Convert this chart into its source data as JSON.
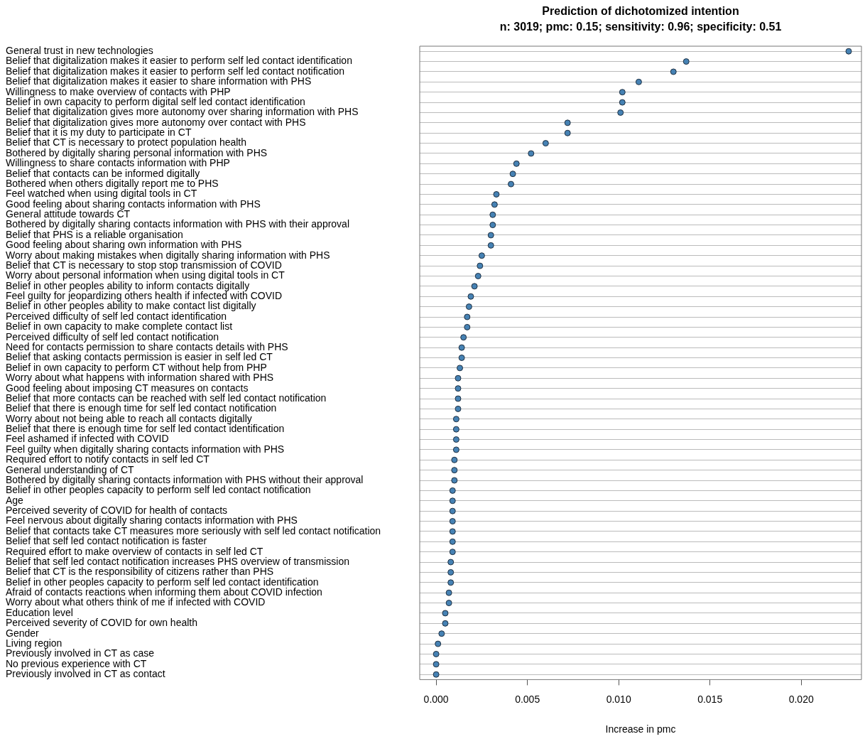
{
  "chart_data": {
    "type": "scatter",
    "orientation": "horizontal",
    "title": "Prediction of dichotomized intention",
    "subtitle": "n: 3019; pmc: 0.15; sensitivity: 0.96; specificity: 0.51",
    "xlabel": "Increase in pmc",
    "categories": [
      "General trust in new technologies",
      "Belief that digitalization makes it easier to perform self led contact identification",
      "Belief that digitalization makes it easier to perform self led contact notification",
      "Belief that digitalization makes it easier to share information with PHS",
      "Willingness to make overview of contacts with PHP",
      "Belief in own capacity to perform digital self led contact identification",
      "Belief that digitalization gives more autonomy over sharing information with PHS",
      "Belief that digitalization gives more autonomy over contact with PHS",
      "Belief that it is my duty to participate in CT",
      "Belief that CT is necessary to protect population health",
      "Bothered by digitally sharing personal information with PHS",
      "Willingness to share contacts information with PHP",
      "Belief that contacts can be informed digitally",
      "Bothered when others digitally report me to PHS",
      "Feel watched when using digital tools in CT",
      "Good feeling about sharing contacts information with PHS",
      "General attitude towards CT",
      "Bothered by digitally sharing contacts information with PHS with their approval",
      "Belief that PHS is a reliable organisation",
      "Good feeling about sharing own information with PHS",
      "Worry about making mistakes when digitally sharing information with PHS",
      "Belief that CT is necessary to stop stop transmission of COVID",
      "Worry about personal information when using digital tools in CT",
      "Belief in other peoples ability to inform contacts digitally",
      "Feel guilty for jeopardizing others health if infected with COVID",
      "Belief in other peoples ability to make contact list digitally",
      "Perceived difficulty of self led contact identification",
      "Belief in own capacity to make complete contact list",
      "Perceived difficulty of self led contact notification",
      "Need for contacts permission to share contacts details with PHS",
      "Belief that asking contacts permission is easier in self led CT",
      "Belief in own capacity to perform CT without help from PHP",
      "Worry about what happens with information shared with PHS",
      "Good feeling about imposing CT measures on contacts",
      "Belief that more contacts can be reached with self led contact notification",
      "Belief that there is enough time for self led contact notification",
      "Worry about not being able to reach all contacts digitally",
      "Belief that there is enough time for self led contact identification",
      "Feel ashamed if infected with COVID",
      "Feel guilty when digitally sharing contacts information with PHS",
      "Required effort to notify contacts in self led CT",
      "General understanding of CT",
      "Bothered by digitally sharing contacts information with PHS without their approval",
      "Belief in other peoples capacity to perform self led contact notification",
      "Age",
      "Perceived severity of COVID for health of contacts",
      "Feel nervous about digitally sharing contacts information with PHS",
      "Belief that contacts take CT measures more seriously with self led contact notification",
      "Belief that self led contact notification is faster",
      "Required effort to make overview of contacts in self led CT",
      "Belief that self led contact notification increases PHS overview of transmission",
      "Belief that CT is the responsibility of citizens rather than PHS",
      "Belief in other peoples capacity to perform self led contact identification",
      "Afraid of contacts reactions when informing them about COVID infection",
      "Worry about what others think of me if infected with COVID",
      "Education level",
      "Perceived severity of COVID for own health",
      "Gender",
      "Living region",
      "Previously involved in CT as case",
      "No previous experience with CT",
      "Previously involved in CT as contact"
    ],
    "values": [
      0.0226,
      0.0137,
      0.013,
      0.0111,
      0.0102,
      0.0102,
      0.0101,
      0.0072,
      0.0072,
      0.006,
      0.0052,
      0.0044,
      0.0042,
      0.0041,
      0.0033,
      0.0032,
      0.0031,
      0.0031,
      0.003,
      0.003,
      0.0025,
      0.0024,
      0.0023,
      0.0021,
      0.0019,
      0.0018,
      0.0017,
      0.0017,
      0.0015,
      0.0014,
      0.0014,
      0.0013,
      0.0012,
      0.0012,
      0.0012,
      0.0012,
      0.0011,
      0.0011,
      0.0011,
      0.0011,
      0.001,
      0.001,
      0.001,
      0.0009,
      0.0009,
      0.0009,
      0.0009,
      0.0009,
      0.0009,
      0.0009,
      0.0008,
      0.0008,
      0.0008,
      0.0007,
      0.0007,
      0.0005,
      0.0005,
      0.0003,
      0.0001,
      0.0,
      0.0,
      0.0
    ],
    "color": "#4682b4",
    "marker": "circle",
    "grid": "y",
    "legend": false,
    "xlim": [
      -0.0009,
      0.0233
    ],
    "xticks": [
      {
        "value": 0,
        "label": "0.000"
      },
      {
        "value": 0.005,
        "label": "0.005"
      },
      {
        "value": 0.01,
        "label": "0.010"
      },
      {
        "value": 0.015,
        "label": "0.015"
      },
      {
        "value": 0.02,
        "label": "0.020"
      }
    ]
  }
}
